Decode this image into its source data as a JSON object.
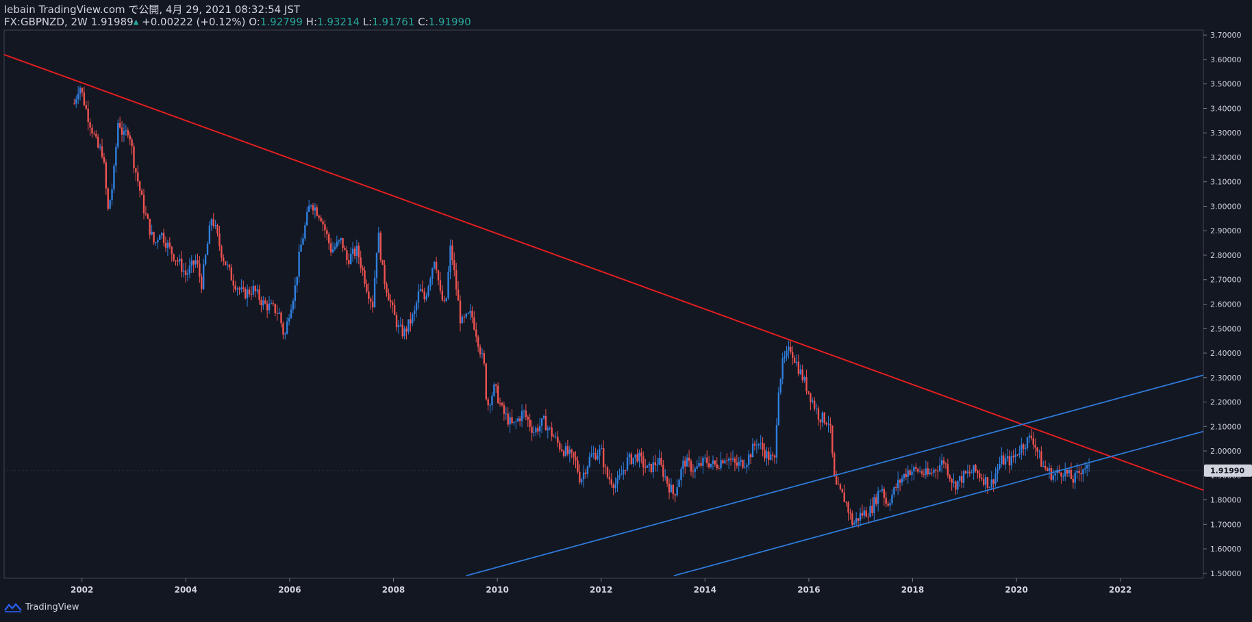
{
  "header": {
    "line1": "lebain TradingView.com で公開, 4月 29, 2021 08:32:54 JST",
    "symbol": "FX:GBPNZD, 2W",
    "last": "1.91989",
    "change": "+0.00222 (+0.12%)",
    "o_label": "O:",
    "o_value": "1.92799",
    "h_label": "H:",
    "h_value": "1.93214",
    "l_label": "L:",
    "l_value": "1.91761",
    "c_label": "C:",
    "c_value": "1.91990"
  },
  "footer": {
    "brand": "TradingView"
  },
  "colors": {
    "background": "#131722",
    "up": "#2962ff",
    "up_body": "#2f80e0",
    "down": "#ef5350",
    "trendline_red": "#e31e1e",
    "channel_blue": "#2f7ad8",
    "axis_text": "#d1d4dc",
    "price_tag_bg": "#d1d4dc"
  },
  "chart_data": {
    "type": "candlestick",
    "symbol": "FX:GBPNZD",
    "interval": "2W",
    "x_axis": {
      "ticks": [
        "2002",
        "2004",
        "2006",
        "2008",
        "2010",
        "2012",
        "2014",
        "2016",
        "2018",
        "2020",
        "2022"
      ],
      "range": [
        2000.5,
        2023.6
      ]
    },
    "y_axis": {
      "ticks": [
        "3.70000",
        "3.60000",
        "3.50000",
        "3.40000",
        "3.30000",
        "3.20000",
        "3.10000",
        "3.00000",
        "2.90000",
        "2.80000",
        "2.70000",
        "2.60000",
        "2.50000",
        "2.40000",
        "2.30000",
        "2.20000",
        "2.10000",
        "2.00000",
        "1.90000",
        "1.80000",
        "1.70000",
        "1.60000",
        "1.50000"
      ],
      "range": [
        1.48,
        3.72
      ],
      "scale": "linear"
    },
    "last_price_label": "1.91990",
    "price_path": [
      [
        2001.85,
        3.42
      ],
      [
        2001.95,
        3.5
      ],
      [
        2002.1,
        3.38
      ],
      [
        2002.3,
        3.24
      ],
      [
        2002.4,
        3.22
      ],
      [
        2002.5,
        2.98
      ],
      [
        2002.6,
        3.1
      ],
      [
        2002.7,
        3.36
      ],
      [
        2002.8,
        3.28
      ],
      [
        2002.9,
        3.32
      ],
      [
        2003.0,
        3.18
      ],
      [
        2003.2,
        2.98
      ],
      [
        2003.4,
        2.84
      ],
      [
        2003.5,
        2.9
      ],
      [
        2003.7,
        2.82
      ],
      [
        2003.9,
        2.76
      ],
      [
        2004.0,
        2.72
      ],
      [
        2004.2,
        2.78
      ],
      [
        2004.3,
        2.68
      ],
      [
        2004.5,
        2.96
      ],
      [
        2004.7,
        2.8
      ],
      [
        2004.9,
        2.7
      ],
      [
        2005.1,
        2.64
      ],
      [
        2005.3,
        2.66
      ],
      [
        2005.5,
        2.6
      ],
      [
        2005.7,
        2.58
      ],
      [
        2005.8,
        2.56
      ],
      [
        2005.9,
        2.46
      ],
      [
        2006.0,
        2.58
      ],
      [
        2006.1,
        2.66
      ],
      [
        2006.2,
        2.82
      ],
      [
        2006.4,
        3.02
      ],
      [
        2006.6,
        2.96
      ],
      [
        2006.8,
        2.82
      ],
      [
        2007.0,
        2.86
      ],
      [
        2007.1,
        2.78
      ],
      [
        2007.3,
        2.82
      ],
      [
        2007.5,
        2.66
      ],
      [
        2007.6,
        2.6
      ],
      [
        2007.7,
        2.9
      ],
      [
        2007.8,
        2.72
      ],
      [
        2008.0,
        2.56
      ],
      [
        2008.1,
        2.5
      ],
      [
        2008.2,
        2.48
      ],
      [
        2008.4,
        2.56
      ],
      [
        2008.5,
        2.66
      ],
      [
        2008.6,
        2.62
      ],
      [
        2008.8,
        2.8
      ],
      [
        2008.9,
        2.64
      ],
      [
        2009.0,
        2.58
      ],
      [
        2009.1,
        2.84
      ],
      [
        2009.3,
        2.52
      ],
      [
        2009.5,
        2.56
      ],
      [
        2009.6,
        2.48
      ],
      [
        2009.75,
        2.34
      ],
      [
        2009.8,
        2.18
      ],
      [
        2009.95,
        2.26
      ],
      [
        2010.1,
        2.16
      ],
      [
        2010.3,
        2.1
      ],
      [
        2010.5,
        2.16
      ],
      [
        2010.7,
        2.08
      ],
      [
        2010.9,
        2.12
      ],
      [
        2011.2,
        2.02
      ],
      [
        2011.5,
        1.96
      ],
      [
        2011.6,
        1.88
      ],
      [
        2011.8,
        1.98
      ],
      [
        2012.0,
        2.0
      ],
      [
        2012.1,
        1.9
      ],
      [
        2012.3,
        1.86
      ],
      [
        2012.5,
        1.96
      ],
      [
        2012.7,
        1.98
      ],
      [
        2012.9,
        1.92
      ],
      [
        2013.1,
        1.96
      ],
      [
        2013.3,
        1.86
      ],
      [
        2013.4,
        1.82
      ],
      [
        2013.6,
        1.96
      ],
      [
        2013.8,
        1.92
      ],
      [
        2014.0,
        1.96
      ],
      [
        2014.2,
        1.94
      ],
      [
        2014.4,
        1.98
      ],
      [
        2014.6,
        1.94
      ],
      [
        2014.8,
        1.96
      ],
      [
        2015.0,
        2.04
      ],
      [
        2015.2,
        1.98
      ],
      [
        2015.35,
        1.96
      ],
      [
        2015.4,
        2.24
      ],
      [
        2015.5,
        2.36
      ],
      [
        2015.65,
        2.42
      ],
      [
        2015.8,
        2.34
      ],
      [
        2016.0,
        2.24
      ],
      [
        2016.2,
        2.14
      ],
      [
        2016.4,
        2.12
      ],
      [
        2016.5,
        1.86
      ],
      [
        2016.7,
        1.8
      ],
      [
        2016.85,
        1.7
      ],
      [
        2017.0,
        1.74
      ],
      [
        2017.2,
        1.76
      ],
      [
        2017.4,
        1.86
      ],
      [
        2017.5,
        1.78
      ],
      [
        2017.7,
        1.86
      ],
      [
        2017.9,
        1.92
      ],
      [
        2018.1,
        1.92
      ],
      [
        2018.3,
        1.9
      ],
      [
        2018.6,
        1.96
      ],
      [
        2018.8,
        1.86
      ],
      [
        2019.0,
        1.9
      ],
      [
        2019.2,
        1.92
      ],
      [
        2019.5,
        1.86
      ],
      [
        2019.7,
        1.96
      ],
      [
        2019.9,
        1.96
      ],
      [
        2020.1,
        2.02
      ],
      [
        2020.3,
        2.06
      ],
      [
        2020.5,
        1.94
      ],
      [
        2020.7,
        1.9
      ],
      [
        2020.9,
        1.92
      ],
      [
        2021.1,
        1.88
      ],
      [
        2021.3,
        1.94
      ],
      [
        2021.4,
        1.92
      ]
    ],
    "trendlines": [
      {
        "name": "",
        "color": "red",
        "points": [
          [
            2000.5,
            3.62
          ],
          [
            2023.6,
            1.84
          ]
        ]
      },
      {
        "name": "",
        "color": "blue",
        "points": [
          [
            2009.4,
            1.49
          ],
          [
            2023.6,
            2.31
          ]
        ]
      },
      {
        "name": "",
        "color": "blue",
        "points": [
          [
            2013.4,
            1.49
          ],
          [
            2023.6,
            2.08
          ]
        ]
      }
    ],
    "grid": false
  }
}
